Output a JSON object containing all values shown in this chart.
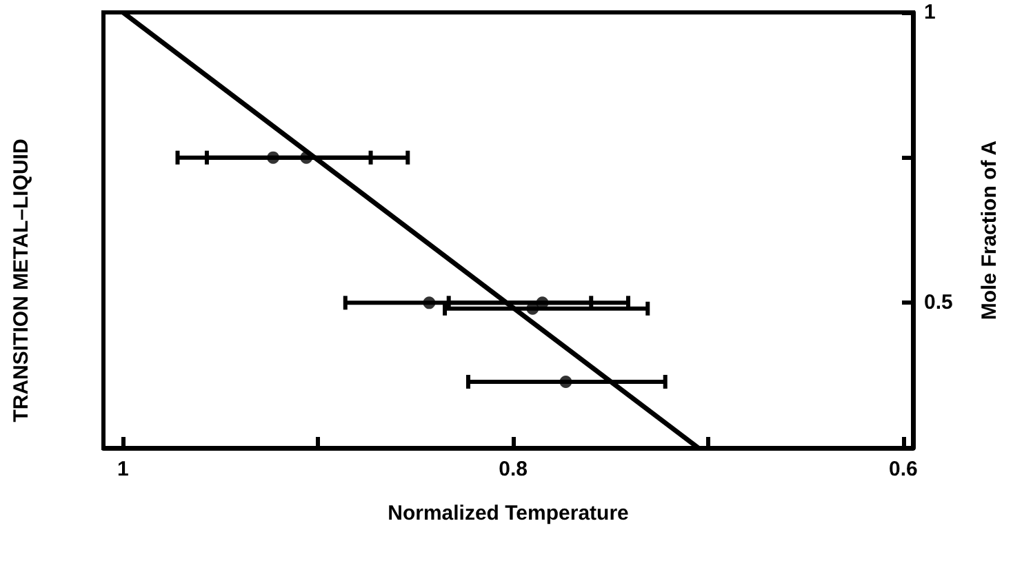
{
  "chart_data": {
    "type": "scatter",
    "title": "TRANSITION METAL–LIQUID",
    "xlabel": "Normalized Temperature",
    "ylabel": "Mole Fraction of A",
    "xlim": [
      1.01,
      0.595
    ],
    "xticks": [
      1,
      {
        "value": 0.9,
        "label": null
      },
      0.8,
      {
        "value": 0.7,
        "label": null
      },
      0.6
    ],
    "ylim": [
      0.25,
      1
    ],
    "yticks": [
      {
        "value": 0.25,
        "label": null
      },
      0.5,
      {
        "value": 0.75,
        "label": null
      },
      1
    ],
    "grid": false,
    "marker": "circle",
    "series": [
      {
        "color": "#000000",
        "x": [
          0.923,
          0.906,
          0.843,
          0.79,
          0.785,
          0.773
        ],
        "values": [
          0.75,
          0.75,
          0.5,
          0.49,
          0.5,
          0.364
        ],
        "xerrors": [
          [
            0.873,
            0.957
          ],
          [
            0.854,
            0.972
          ],
          [
            0.741,
            0.886
          ],
          [
            0.731,
            0.835
          ],
          [
            0.76,
            0.833
          ],
          [
            0.722,
            0.823
          ]
        ]
      },
      {
        "type": "line",
        "color": "#000000",
        "marker": "none",
        "line_style": "solid",
        "x": [
          1,
          0.705
        ],
        "values": [
          1,
          0.25
        ]
      }
    ]
  }
}
